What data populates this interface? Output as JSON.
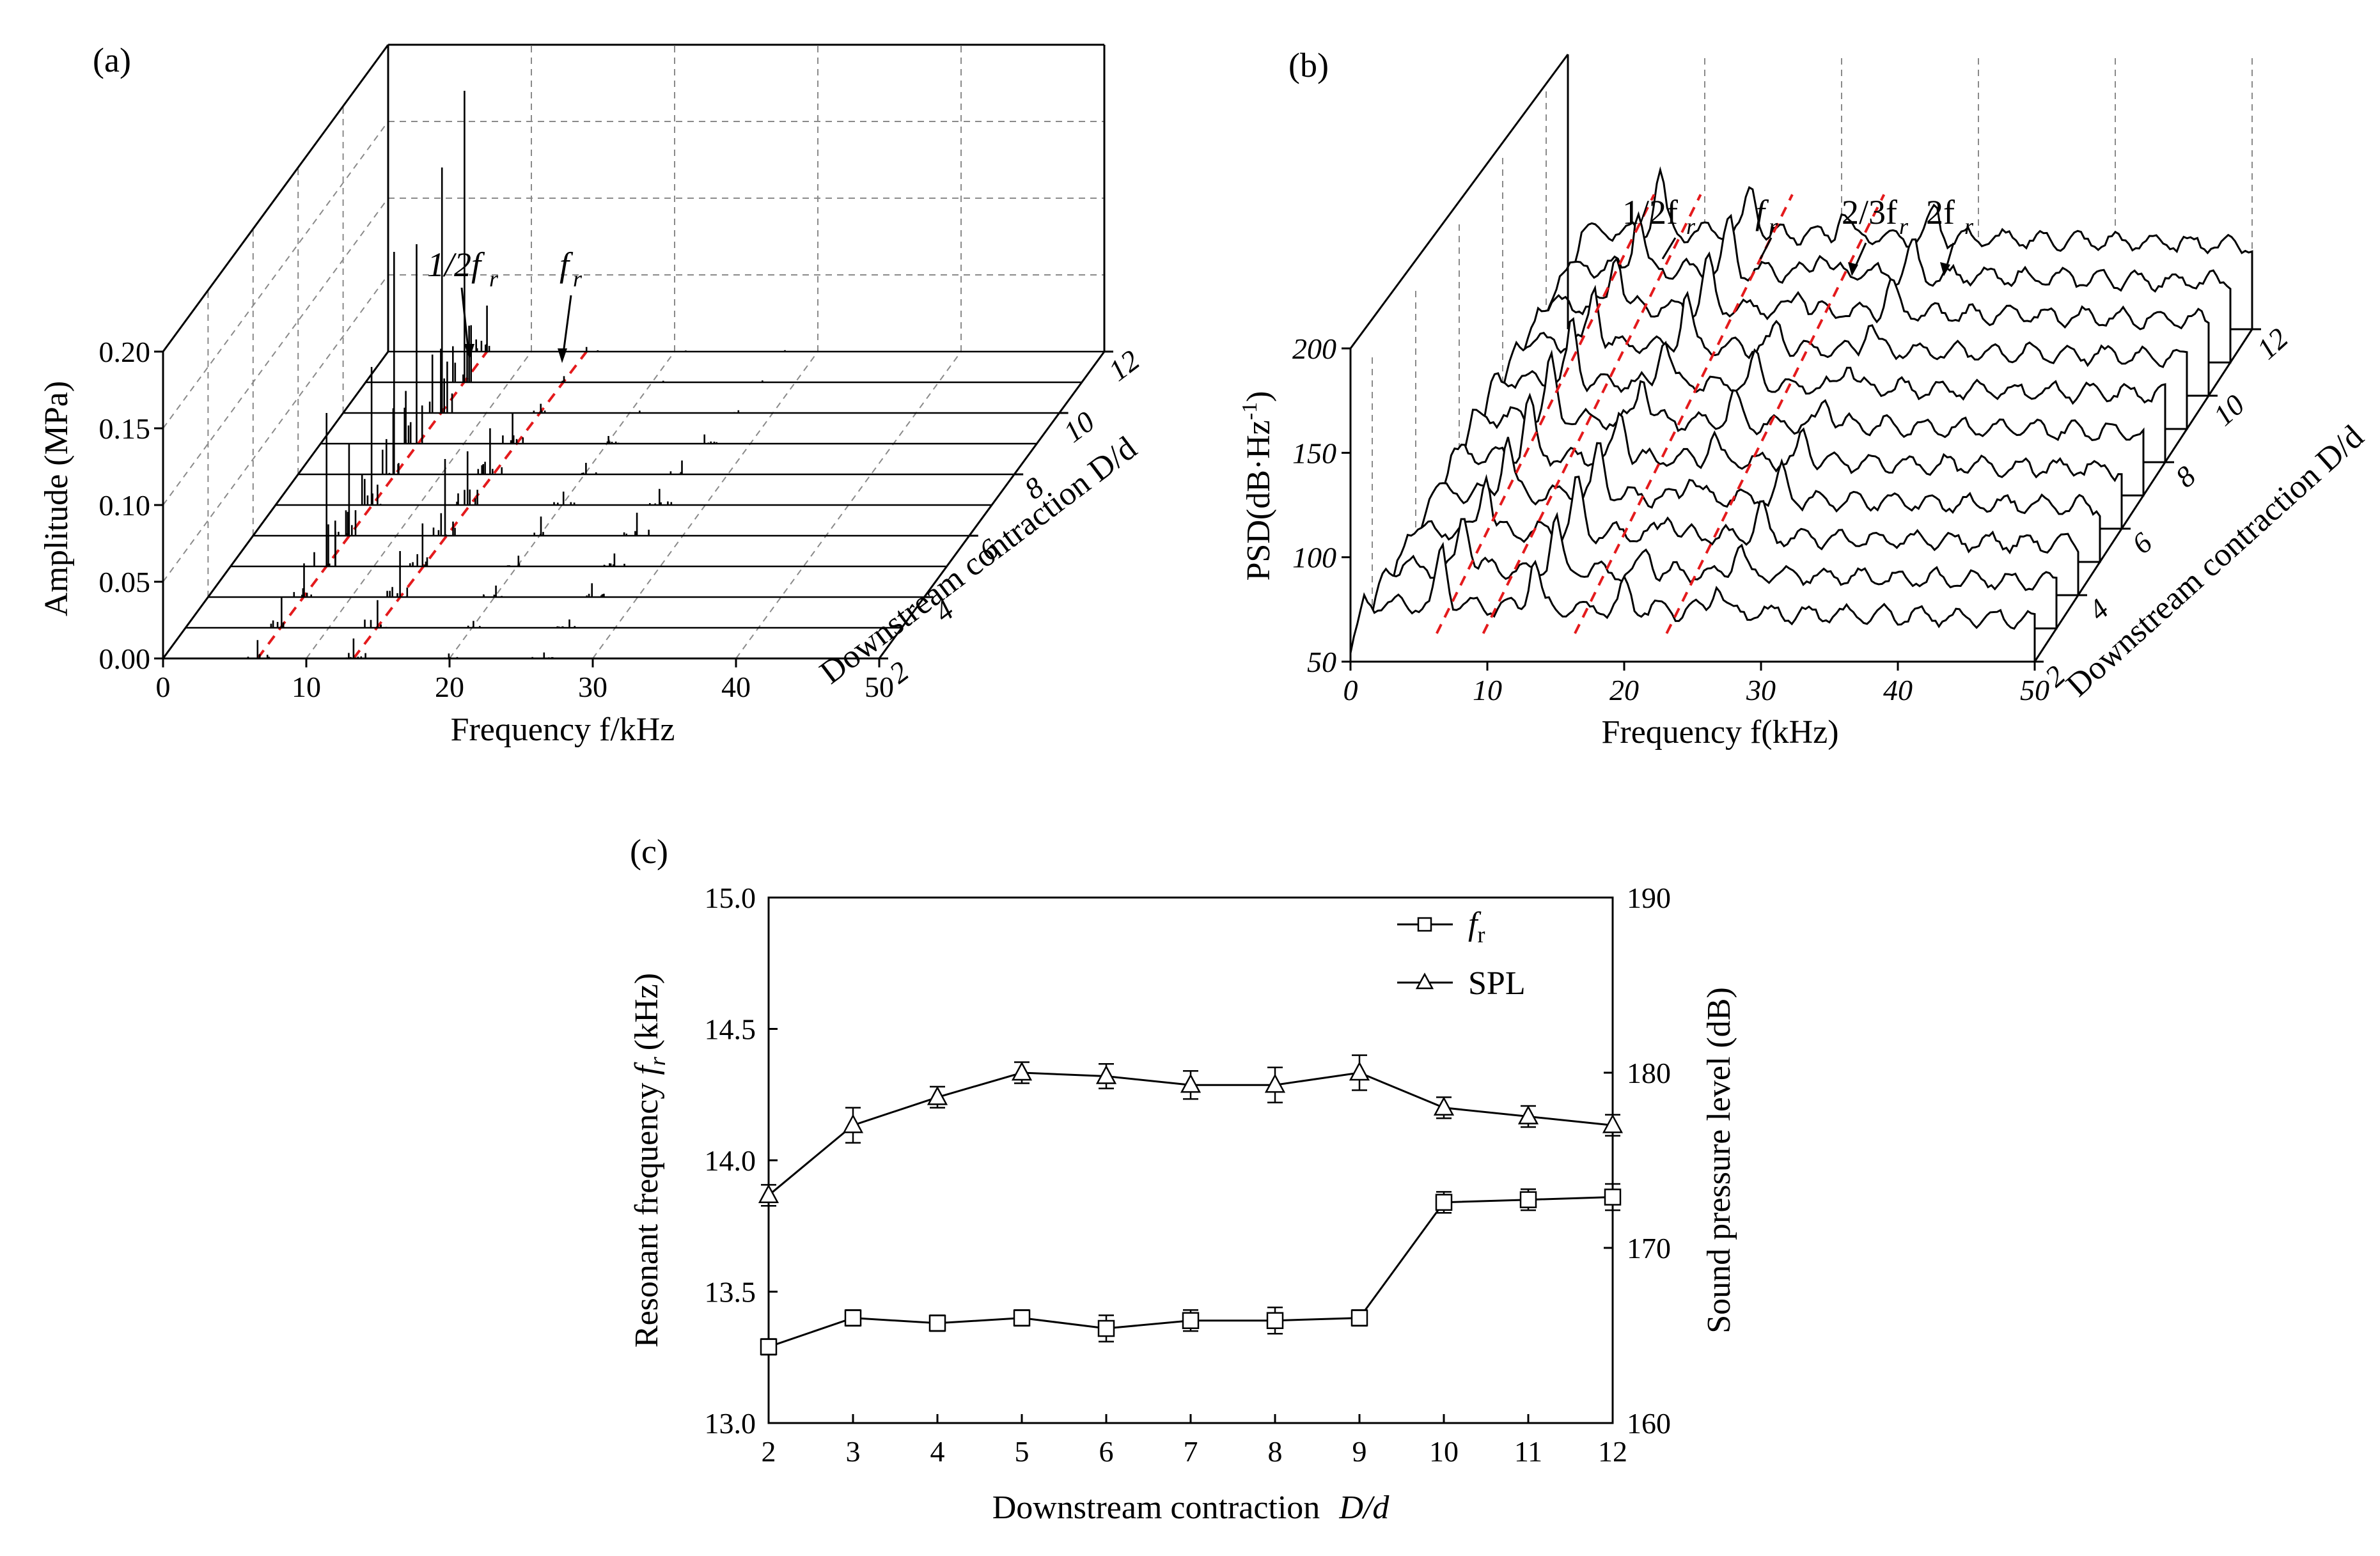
{
  "chart_data": [
    {
      "id": "a",
      "type": "waterfall",
      "panel_label": "(a)",
      "xlabel": "Frequency f/kHz",
      "ylabel": "Amplitude (MPa)",
      "zlabel": "Downstream contraction D/d",
      "x_ticks": [
        "0",
        "10",
        "20",
        "30",
        "40",
        "50"
      ],
      "y_ticks": [
        "0.00",
        "0.05",
        "0.10",
        "0.15",
        "0.20"
      ],
      "z_ticks": [
        "2",
        "4",
        "6",
        "8",
        "10",
        "12"
      ],
      "xlim": [
        0,
        50
      ],
      "ylim": [
        0,
        0.2
      ],
      "annotations": [
        "1/2f",
        "r",
        "f",
        "r"
      ],
      "series": [
        {
          "D_d": 2,
          "half_fr_kHz": 6.6,
          "half_fr_amp": 0.012,
          "fr_kHz": 13.3,
          "fr_amp": 0.013
        },
        {
          "D_d": 3,
          "half_fr_kHz": 6.7,
          "half_fr_amp": 0.02,
          "fr_kHz": 13.4,
          "fr_amp": 0.018
        },
        {
          "D_d": 4,
          "half_fr_kHz": 6.7,
          "half_fr_amp": 0.022,
          "fr_kHz": 13.4,
          "fr_amp": 0.03
        },
        {
          "D_d": 5,
          "half_fr_kHz": 6.7,
          "half_fr_amp": 0.1,
          "fr_kHz": 13.4,
          "fr_amp": 0.028
        },
        {
          "D_d": 6,
          "half_fr_kHz": 6.7,
          "half_fr_amp": 0.06,
          "fr_kHz": 13.4,
          "fr_amp": 0.05
        },
        {
          "D_d": 7,
          "half_fr_kHz": 6.7,
          "half_fr_amp": 0.09,
          "fr_kHz": 13.4,
          "fr_amp": 0.035
        },
        {
          "D_d": 8,
          "half_fr_kHz": 6.7,
          "half_fr_amp": 0.145,
          "fr_kHz": 13.4,
          "fr_amp": 0.03
        },
        {
          "D_d": 9,
          "half_fr_kHz": 6.7,
          "half_fr_amp": 0.13,
          "fr_kHz": 13.4,
          "fr_amp": 0.02
        },
        {
          "D_d": 10,
          "half_fr_kHz": 6.9,
          "half_fr_amp": 0.16,
          "fr_kHz": 13.8,
          "fr_amp": 0.006
        },
        {
          "D_d": 11,
          "half_fr_kHz": 6.9,
          "half_fr_amp": 0.19,
          "fr_kHz": 13.85,
          "fr_amp": 0.004
        },
        {
          "D_d": 12,
          "half_fr_kHz": 6.9,
          "half_fr_amp": 0.03,
          "fr_kHz": 13.85,
          "fr_amp": 0.003
        }
      ]
    },
    {
      "id": "b",
      "type": "waterfall",
      "panel_label": "(b)",
      "xlabel": "Frequency f(kHz)",
      "ylabel": "PSD(dB·Hz",
      "ylabel_sup": "-1",
      "ylabel_end": ")",
      "zlabel": "Downstream contraction D/d",
      "x_ticks": [
        "0",
        "10",
        "20",
        "30",
        "40",
        "50"
      ],
      "y_ticks": [
        "50",
        "100",
        "150",
        "200"
      ],
      "z_ticks": [
        "2",
        "4",
        "6",
        "8",
        "10",
        "12"
      ],
      "xlim": [
        0,
        50
      ],
      "ylim": [
        50,
        200
      ],
      "annotations": [
        "1/2f",
        "r",
        "f",
        "r",
        "2/3f",
        "r",
        "2f",
        "r"
      ],
      "series_count": 11
    },
    {
      "id": "c",
      "type": "line",
      "panel_label": "(c)",
      "xlabel": "Downstream contraction",
      "xlabel_var": "D/d",
      "ylabel_left": "Resonant frequency",
      "ylabel_left_var": "f",
      "ylabel_left_sub": "r",
      "ylabel_left_unit": "(kHz)",
      "ylabel_right": "Sound pressure level (dB)",
      "x_ticks": [
        "2",
        "3",
        "4",
        "5",
        "6",
        "7",
        "8",
        "9",
        "10",
        "11",
        "12"
      ],
      "y_left_ticks": [
        "13.0",
        "13.5",
        "14.0",
        "14.5",
        "15.0"
      ],
      "y_right_ticks": [
        "160",
        "170",
        "180",
        "190"
      ],
      "xlim": [
        2,
        12
      ],
      "ylim_left": [
        13.0,
        15.0
      ],
      "ylim_right": [
        160,
        190
      ],
      "x": [
        2,
        3,
        4,
        5,
        6,
        7,
        8,
        9,
        10,
        11,
        12
      ],
      "series": [
        {
          "name": "f",
          "name_sub": "r",
          "marker": "square",
          "axis": "left",
          "values": [
            13.29,
            13.4,
            13.38,
            13.4,
            13.36,
            13.39,
            13.39,
            13.4,
            13.84,
            13.85,
            13.86
          ],
          "errors": [
            0.03,
            0.03,
            0.03,
            0.03,
            0.05,
            0.04,
            0.05,
            0.03,
            0.04,
            0.04,
            0.05
          ]
        },
        {
          "name": "SPL",
          "marker": "triangle",
          "axis": "right",
          "values": [
            173.0,
            177.0,
            178.6,
            180.0,
            179.8,
            179.3,
            179.3,
            180.0,
            178.0,
            177.5,
            177.0
          ],
          "errors": [
            0.6,
            1.0,
            0.6,
            0.6,
            0.7,
            0.8,
            1.0,
            1.0,
            0.6,
            0.6,
            0.6
          ]
        }
      ],
      "legend_position": "top-right"
    }
  ]
}
